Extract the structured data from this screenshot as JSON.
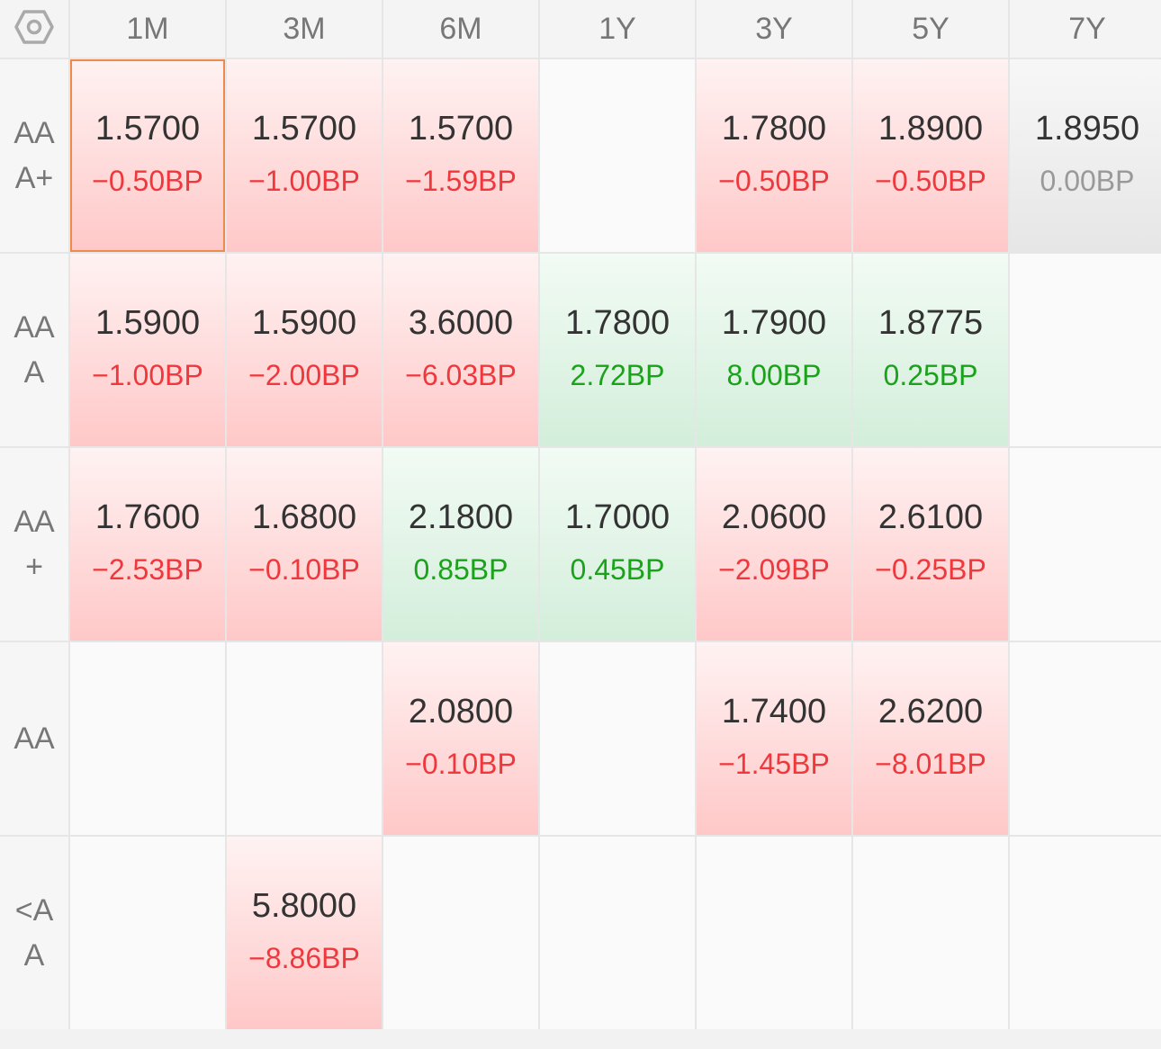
{
  "columns": [
    "1M",
    "3M",
    "6M",
    "1Y",
    "3Y",
    "5Y",
    "7Y"
  ],
  "colors": {
    "up": "#f0373c",
    "down": "#1aa31a",
    "flat": "#999999",
    "selected_border": "#f08a4b"
  },
  "corner_icon": "settings-hex-icon",
  "rows": [
    {
      "label": "AAA+",
      "cells": [
        {
          "rate": "1.5700",
          "change": "−0.50BP",
          "trend": "up",
          "selected": true
        },
        {
          "rate": "1.5700",
          "change": "−1.00BP",
          "trend": "up"
        },
        {
          "rate": "1.5700",
          "change": "−1.59BP",
          "trend": "up"
        },
        null,
        {
          "rate": "1.7800",
          "change": "−0.50BP",
          "trend": "up"
        },
        {
          "rate": "1.8900",
          "change": "−0.50BP",
          "trend": "up"
        },
        {
          "rate": "1.8950",
          "change": "0.00BP",
          "trend": "flat"
        }
      ]
    },
    {
      "label": "AAA",
      "cells": [
        {
          "rate": "1.5900",
          "change": "−1.00BP",
          "trend": "up"
        },
        {
          "rate": "1.5900",
          "change": "−2.00BP",
          "trend": "up"
        },
        {
          "rate": "3.6000",
          "change": "−6.03BP",
          "trend": "up"
        },
        {
          "rate": "1.7800",
          "change": "2.72BP",
          "trend": "down"
        },
        {
          "rate": "1.7900",
          "change": "8.00BP",
          "trend": "down"
        },
        {
          "rate": "1.8775",
          "change": "0.25BP",
          "trend": "down"
        },
        null
      ]
    },
    {
      "label": "AA+",
      "cells": [
        {
          "rate": "1.7600",
          "change": "−2.53BP",
          "trend": "up"
        },
        {
          "rate": "1.6800",
          "change": "−0.10BP",
          "trend": "up"
        },
        {
          "rate": "2.1800",
          "change": "0.85BP",
          "trend": "down"
        },
        {
          "rate": "1.7000",
          "change": "0.45BP",
          "trend": "down"
        },
        {
          "rate": "2.0600",
          "change": "−2.09BP",
          "trend": "up"
        },
        {
          "rate": "2.6100",
          "change": "−0.25BP",
          "trend": "up"
        },
        null
      ]
    },
    {
      "label": "AA",
      "cells": [
        null,
        null,
        {
          "rate": "2.0800",
          "change": "−0.10BP",
          "trend": "up"
        },
        null,
        {
          "rate": "1.7400",
          "change": "−1.45BP",
          "trend": "up"
        },
        {
          "rate": "2.6200",
          "change": "−8.01BP",
          "trend": "up"
        },
        null
      ]
    },
    {
      "label": "<AA",
      "cells": [
        null,
        {
          "rate": "5.8000",
          "change": "−8.86BP",
          "trend": "up"
        },
        null,
        null,
        null,
        null,
        null
      ]
    }
  ]
}
